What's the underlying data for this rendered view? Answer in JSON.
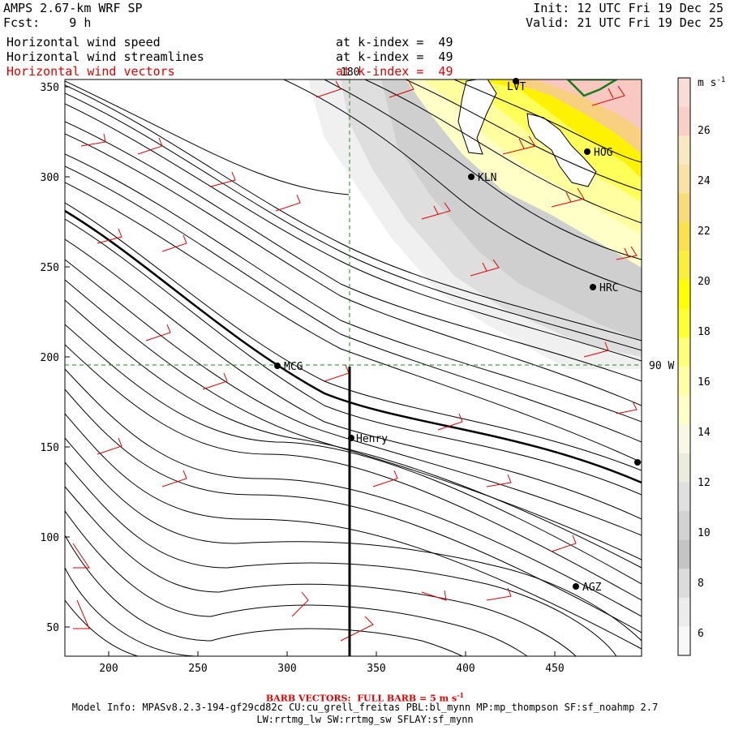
{
  "header": {
    "model": "AMPS 2.67-km WRF SP",
    "fcst": "Fcst:    9 h",
    "init": "Init: 12 UTC Fri 19 Dec 25",
    "valid": "Valid: 21 UTC Fri 19 Dec 25",
    "fields": [
      {
        "label": "Horizontal wind speed",
        "level": "at k-index =  49",
        "color": "#000000"
      },
      {
        "label": "Horizontal wind streamlines",
        "level": "at k-index =  49",
        "color": "#000000"
      },
      {
        "label": "Horizontal wind vectors",
        "level": "at k-index =  49",
        "color": "#e00000"
      }
    ]
  },
  "axes": {
    "x_ticks": [
      "200",
      "250",
      "300",
      "350",
      "400",
      "450"
    ],
    "y_ticks": [
      "350",
      "300",
      "250",
      "200",
      "150",
      "100",
      "50"
    ],
    "meridian_label": "180",
    "parallel_label": "90 W"
  },
  "stations": [
    {
      "name": "LVT"
    },
    {
      "name": "HOG"
    },
    {
      "name": "KLN"
    },
    {
      "name": "HRC"
    },
    {
      "name": "MCG"
    },
    {
      "name": "Henry"
    },
    {
      "name": "AGZ"
    }
  ],
  "colorbar": {
    "unit": "m s",
    "unit_exp": "-1",
    "labels": [
      "26",
      "24",
      "22",
      "20",
      "18",
      "16",
      "14",
      "12",
      "10",
      "8",
      "6"
    ],
    "colors": [
      "#f9dcd6",
      "#f9d0c8",
      "#f9e9c3",
      "#f9e2a6",
      "#f9dc7a",
      "#f9e24d",
      "#f9ef3c",
      "#ffff00",
      "#ffff33",
      "#ffff7a",
      "#ffffa6",
      "#ffffc8",
      "#f8f8e4",
      "#ececdc",
      "#e0e0e0",
      "#d2d2d2",
      "#c4c4c4",
      "#dcdcdc",
      "#ececec",
      "#f8f8f8"
    ]
  },
  "footer": {
    "barb_prefix": "BARB VECTORS:  FULL BARB = 5 m s",
    "barb_exp": "-1",
    "model_info_1": "Model Info: MPASv8.2.3-194-gf29cd82c CU:cu_grell_freitas PBL:bl_mynn MP:mp_thompson SF:sf_noahmp 2.7",
    "model_info_2": "LW:rrtmg_lw SW:rrtmg_sw SFLAY:sf_mynn"
  }
}
